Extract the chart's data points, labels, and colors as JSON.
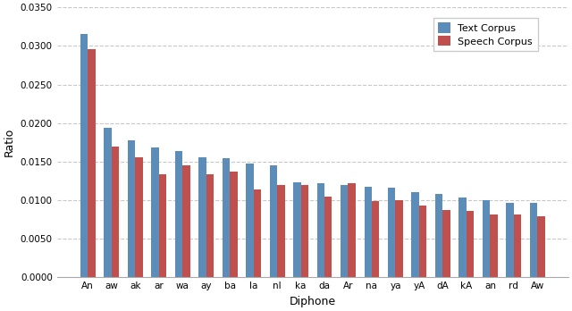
{
  "categories": [
    "An",
    "aw",
    "ak",
    "ar",
    "wa",
    "ay",
    "ba",
    "la",
    "nI",
    "ka",
    "da",
    "Ar",
    "na",
    "ya",
    "yA",
    "dA",
    "kA",
    "an",
    "rd",
    "Aw"
  ],
  "text_corpus": [
    0.0315,
    0.0194,
    0.0178,
    0.0168,
    0.0164,
    0.0156,
    0.0155,
    0.0147,
    0.0145,
    0.0123,
    0.0122,
    0.012,
    0.0118,
    0.0116,
    0.011,
    0.0108,
    0.0103,
    0.01,
    0.0097,
    0.0097
  ],
  "speech_corpus": [
    0.0296,
    0.017,
    0.0156,
    0.0134,
    0.0145,
    0.0134,
    0.0137,
    0.0114,
    0.012,
    0.012,
    0.0105,
    0.0122,
    0.0099,
    0.01,
    0.0093,
    0.0087,
    0.0086,
    0.0082,
    0.0082,
    0.0079
  ],
  "text_color": "#5B8DB8",
  "speech_color": "#C0504D",
  "xlabel": "Diphone",
  "ylabel": "Ratio",
  "ylim": [
    0.0,
    0.035
  ],
  "yticks": [
    0.0,
    0.005,
    0.01,
    0.015,
    0.02,
    0.025,
    0.03,
    0.035
  ],
  "legend_labels": [
    "Text Corpus",
    "Speech Corpus"
  ],
  "background_color": "#ffffff",
  "grid_color": "#c8c8c8"
}
